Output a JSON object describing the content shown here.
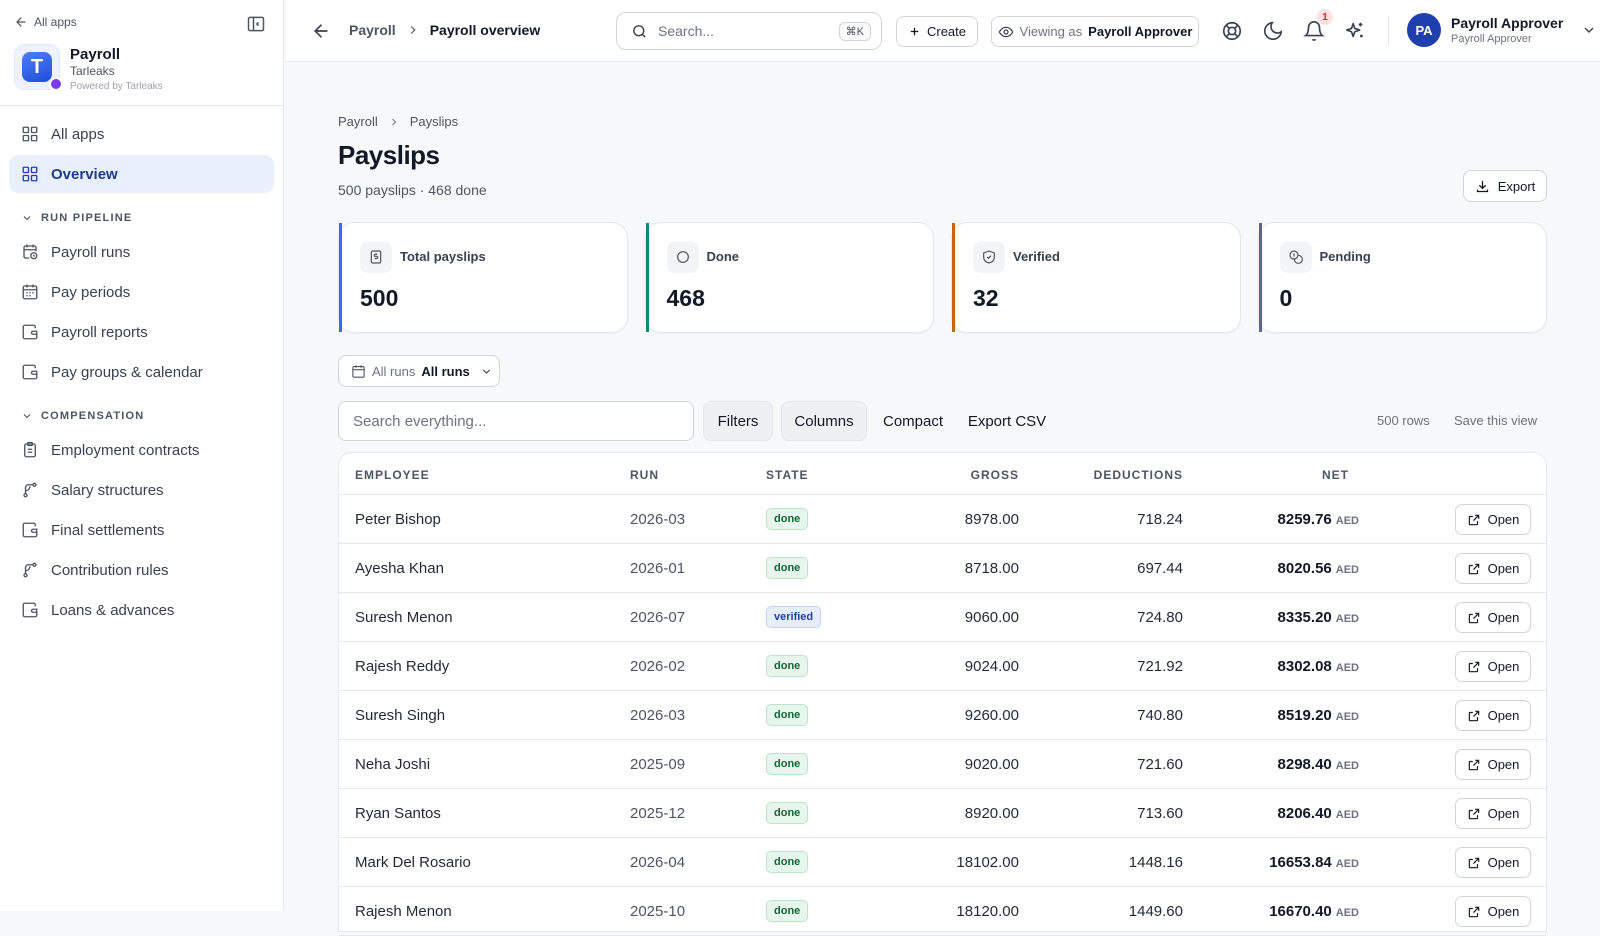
{
  "sidebar": {
    "back_label": "All apps",
    "brand": {
      "logo_letter": "T",
      "name": "Payroll",
      "org": "Tarleaks",
      "powered": "Powered by Tarleaks"
    },
    "top_items": [
      {
        "label": "All apps",
        "icon": "grid-icon"
      },
      {
        "label": "Overview",
        "icon": "grid-icon",
        "active": true
      }
    ],
    "sections": [
      {
        "title": "RUN PIPELINE",
        "items": [
          {
            "label": "Payroll runs",
            "icon": "calendar-clock-icon"
          },
          {
            "label": "Pay periods",
            "icon": "calendar-icon"
          },
          {
            "label": "Payroll reports",
            "icon": "wallet-icon"
          },
          {
            "label": "Pay groups & calendar",
            "icon": "wallet-icon"
          }
        ]
      },
      {
        "title": "COMPENSATION",
        "items": [
          {
            "label": "Employment contracts",
            "icon": "clipboard-icon"
          },
          {
            "label": "Salary structures",
            "icon": "branch-icon"
          },
          {
            "label": "Final settlements",
            "icon": "wallet-icon"
          },
          {
            "label": "Contribution rules",
            "icon": "branch-icon"
          },
          {
            "label": "Loans & advances",
            "icon": "wallet-icon"
          }
        ]
      }
    ]
  },
  "topbar": {
    "crumb_parent": "Payroll",
    "crumb_current": "Payroll overview",
    "search_placeholder": "Search...",
    "search_shortcut": "⌘K",
    "create_label": "Create",
    "viewing_prefix": "Viewing as",
    "viewing_role": "Payroll Approver",
    "notifications_count": "1",
    "user": {
      "initials": "PA",
      "name": "Payroll Approver",
      "role": "Payroll Approver"
    }
  },
  "page": {
    "breadcrumb": [
      "Payroll",
      "Payslips"
    ],
    "title": "Payslips",
    "subtitle": "500 payslips · 468 done",
    "export_label": "Export"
  },
  "stats": [
    {
      "label": "Total payslips",
      "value": "500",
      "accent": "#2f6fed",
      "icon": "document-dollar-icon"
    },
    {
      "label": "Done",
      "value": "468",
      "accent": "#16857a",
      "icon": "circle-icon"
    },
    {
      "label": "Verified",
      "value": "32",
      "accent": "#c2670f",
      "icon": "shield-check-icon"
    },
    {
      "label": "Pending",
      "value": "0",
      "accent": "#4b6a9b",
      "icon": "coins-icon"
    }
  ],
  "run_filter": {
    "prefix": "All runs",
    "value": "All runs"
  },
  "toolbar": {
    "search_placeholder": "Search everything...",
    "filters_label": "Filters",
    "columns_label": "Columns",
    "compact_label": "Compact",
    "export_csv_label": "Export CSV",
    "rows_label": "500 rows",
    "save_view_label": "Save this view"
  },
  "table": {
    "headers": {
      "employee": "EMPLOYEE",
      "run": "RUN",
      "state": "STATE",
      "gross": "GROSS",
      "deductions": "DEDUCTIONS",
      "net": "NET"
    },
    "open_label": "Open",
    "currency": "AED",
    "rows": [
      {
        "employee": "Peter Bishop",
        "run": "2026-03",
        "state": "done",
        "gross": "8978.00",
        "deductions": "718.24",
        "net": "8259.76"
      },
      {
        "employee": "Ayesha Khan",
        "run": "2026-01",
        "state": "done",
        "gross": "8718.00",
        "deductions": "697.44",
        "net": "8020.56"
      },
      {
        "employee": "Suresh Menon",
        "run": "2026-07",
        "state": "verified",
        "gross": "9060.00",
        "deductions": "724.80",
        "net": "8335.20"
      },
      {
        "employee": "Rajesh Reddy",
        "run": "2026-02",
        "state": "done",
        "gross": "9024.00",
        "deductions": "721.92",
        "net": "8302.08"
      },
      {
        "employee": "Suresh Singh",
        "run": "2026-03",
        "state": "done",
        "gross": "9260.00",
        "deductions": "740.80",
        "net": "8519.20"
      },
      {
        "employee": "Neha Joshi",
        "run": "2025-09",
        "state": "done",
        "gross": "9020.00",
        "deductions": "721.60",
        "net": "8298.40"
      },
      {
        "employee": "Ryan Santos",
        "run": "2025-12",
        "state": "done",
        "gross": "8920.00",
        "deductions": "713.60",
        "net": "8206.40"
      },
      {
        "employee": "Mark Del Rosario",
        "run": "2026-04",
        "state": "done",
        "gross": "18102.00",
        "deductions": "1448.16",
        "net": "16653.84"
      },
      {
        "employee": "Rajesh Menon",
        "run": "2025-10",
        "state": "done",
        "gross": "18120.00",
        "deductions": "1449.60",
        "net": "16670.40"
      }
    ]
  }
}
